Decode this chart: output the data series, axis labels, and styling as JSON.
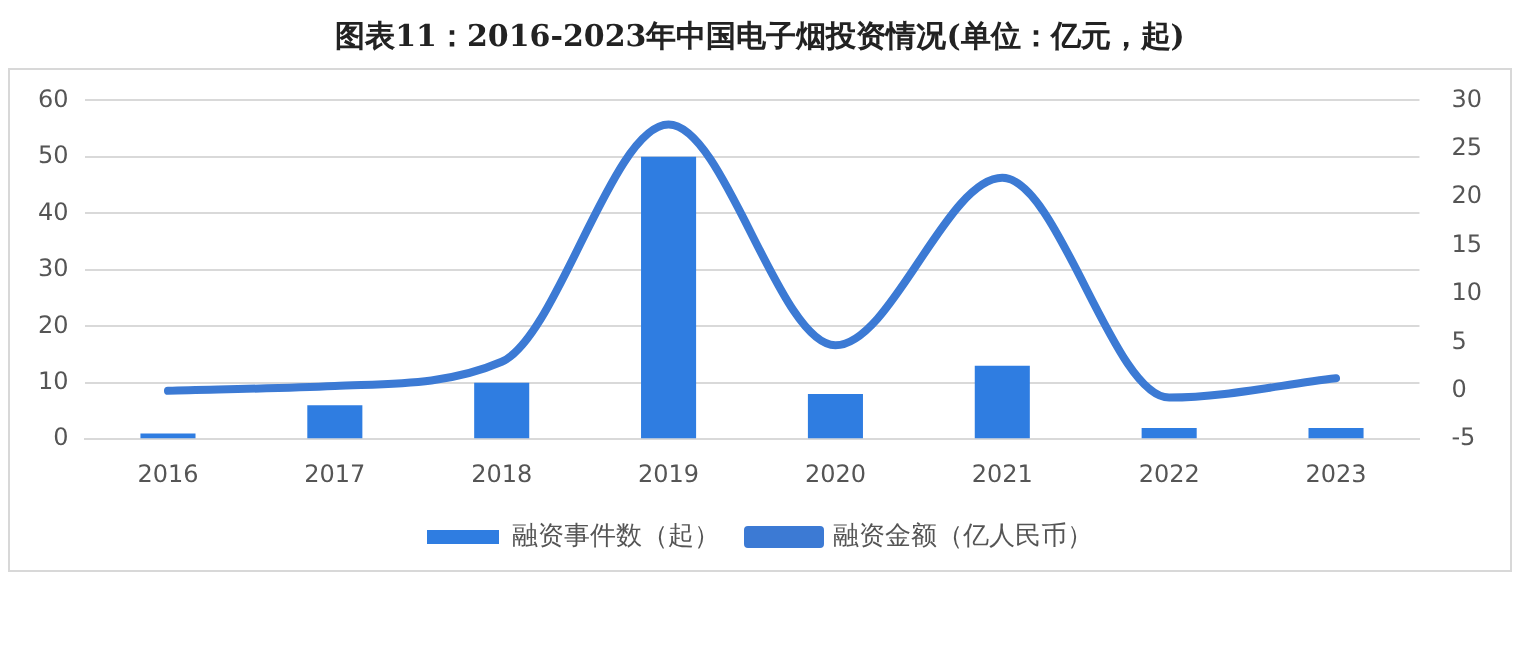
{
  "chart_data": {
    "type": "bar",
    "title": "图表11：2016-2023年中国电子烟投资情况(单位：亿元，起)",
    "categories": [
      "2016",
      "2017",
      "2018",
      "2019",
      "2020",
      "2021",
      "2022",
      "2023"
    ],
    "series": [
      {
        "name": "融资事件数（起）",
        "color": "#2f7de1",
        "values": [
          1,
          6,
          10,
          50,
          8,
          13,
          2,
          2
        ]
      },
      {
        "name": "融资金额（亿人民币）",
        "type": "line",
        "axis": "y2",
        "color": "#3c7ad4",
        "values": [
          0,
          0.5,
          3,
          27.5,
          4.7,
          22,
          -0.7,
          1.3
        ]
      }
    ],
    "ylim": [
      0,
      60
    ],
    "yticks": [
      0,
      10,
      20,
      30,
      40,
      50,
      60
    ],
    "y2lim": [
      -5,
      30
    ],
    "y2ticks": [
      -5,
      0,
      5,
      10,
      15,
      20,
      25,
      30
    ],
    "grid": "y",
    "legend": "bottom",
    "marker": "none",
    "line_style": "solid"
  }
}
